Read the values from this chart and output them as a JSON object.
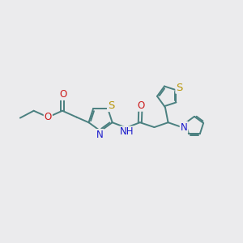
{
  "bg_color": "#ebebed",
  "bond_color": "#4a8080",
  "bond_width": 1.4,
  "atom_colors": {
    "S": "#b8960a",
    "N": "#1a1acc",
    "O": "#cc1a1a",
    "C": "#000000"
  },
  "font_size": 8.5,
  "fig_size": [
    3.0,
    3.0
  ],
  "dpi": 100
}
